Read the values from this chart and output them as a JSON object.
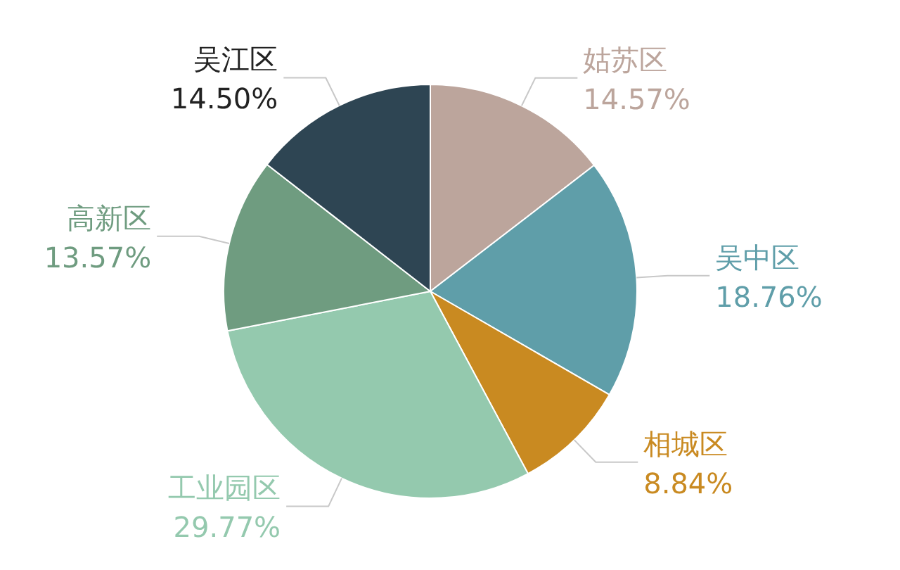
{
  "chart_data": {
    "type": "pie",
    "categories": [
      "姑苏区",
      "吴中区",
      "相城区",
      "工业园区",
      "高新区",
      "吴江区"
    ],
    "values": [
      14.57,
      18.76,
      8.84,
      29.77,
      13.57,
      14.5
    ],
    "value_labels": [
      "14.57%",
      "18.76%",
      "8.84%",
      "29.77%",
      "13.57%",
      "14.50%"
    ],
    "colors": [
      "#bca59c",
      "#5f9ea9",
      "#c98a21",
      "#94c9ae",
      "#6f9c80",
      "#2e4553"
    ],
    "legend": false
  }
}
